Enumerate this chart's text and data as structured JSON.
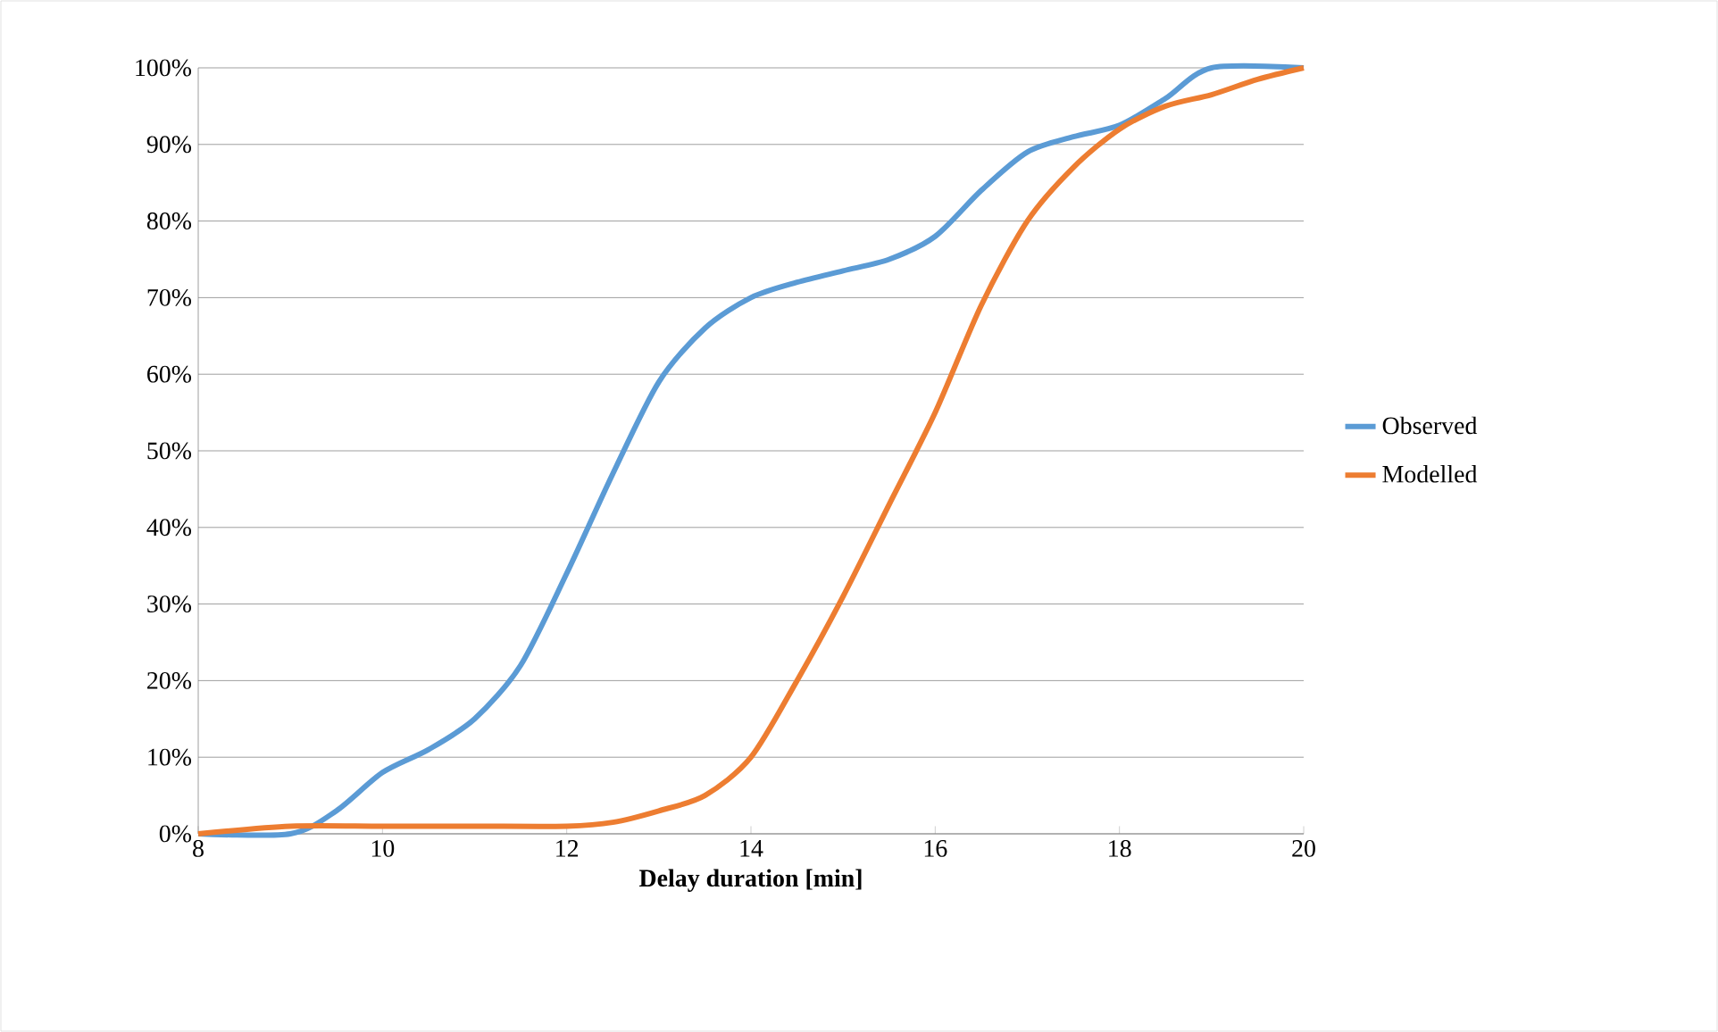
{
  "chart_data": {
    "type": "line",
    "xlabel": "Delay duration [min]",
    "x": [
      8,
      9,
      9.5,
      10,
      10.5,
      11,
      11.5,
      12,
      12.5,
      13,
      13.5,
      14,
      14.5,
      15,
      15.5,
      16,
      16.5,
      17,
      17.5,
      18,
      18.5,
      19,
      20
    ],
    "series": [
      {
        "name": "Observed",
        "color": "#5b9bd5",
        "values": [
          0,
          0,
          3,
          8,
          11,
          15,
          22,
          34,
          47,
          59,
          66,
          70,
          72,
          73.5,
          75,
          78,
          84,
          89,
          91,
          92.5,
          96,
          100,
          100
        ]
      },
      {
        "name": "Modelled",
        "color": "#ed7d31",
        "x": [
          8,
          9,
          10,
          11,
          12,
          12.5,
          13,
          13.5,
          14,
          14.5,
          15,
          15.5,
          16,
          16.5,
          17,
          17.5,
          18,
          18.5,
          19,
          19.5,
          20
        ],
        "values": [
          0,
          1,
          1,
          1,
          1,
          1.5,
          3,
          5,
          10,
          20,
          31,
          43,
          55,
          69,
          80,
          87,
          92,
          95,
          96.5,
          98.5,
          100
        ]
      }
    ],
    "xlim": [
      8,
      20
    ],
    "xticks": [
      8,
      10,
      12,
      14,
      16,
      18,
      20
    ],
    "ylim": [
      0,
      100
    ],
    "yticks": [
      {
        "value": 0,
        "label": "0%"
      },
      {
        "value": 10,
        "label": "10%"
      },
      {
        "value": 20,
        "label": "20%"
      },
      {
        "value": 30,
        "label": "30%"
      },
      {
        "value": 40,
        "label": "40%"
      },
      {
        "value": 50,
        "label": "50%"
      },
      {
        "value": 60,
        "label": "60%"
      },
      {
        "value": 70,
        "label": "70%"
      },
      {
        "value": 80,
        "label": "80%"
      },
      {
        "value": 90,
        "label": "90%"
      },
      {
        "value": 100,
        "label": "100%"
      }
    ],
    "grid": "y",
    "legend": "right",
    "marker": "none",
    "line_style": "solid"
  }
}
